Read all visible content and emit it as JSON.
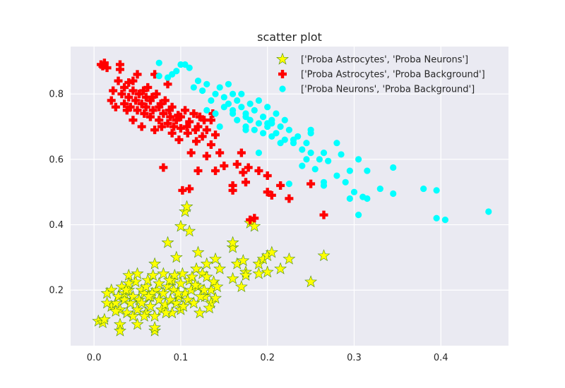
{
  "chart_data": {
    "type": "scatter",
    "title": "scatter plot",
    "xlabel": "",
    "ylabel": "",
    "xlim": [
      -0.027,
      0.478
    ],
    "ylim": [
      0.03,
      0.945
    ],
    "xticks": [
      0.0,
      0.1,
      0.2,
      0.3,
      0.4
    ],
    "xtick_labels": [
      "0.0",
      "0.1",
      "0.2",
      "0.3",
      "0.4"
    ],
    "yticks": [
      0.2,
      0.4,
      0.6,
      0.8
    ],
    "ytick_labels": [
      "0.2",
      "0.4",
      "0.6",
      "0.8"
    ],
    "grid": true,
    "legend_position": "top-right",
    "series": [
      {
        "name": "['Proba Astrocytes', 'Proba Neurons']",
        "marker": "star",
        "color": "#ffff00",
        "edge_color": "#4a8c1a",
        "points": [
          [
            0.005,
            0.105
          ],
          [
            0.01,
            0.1
          ],
          [
            0.012,
            0.11
          ],
          [
            0.02,
            0.15
          ],
          [
            0.02,
            0.2
          ],
          [
            0.025,
            0.16
          ],
          [
            0.028,
            0.18
          ],
          [
            0.03,
            0.095
          ],
          [
            0.03,
            0.075
          ],
          [
            0.03,
            0.14
          ],
          [
            0.032,
            0.21
          ],
          [
            0.035,
            0.17
          ],
          [
            0.035,
            0.19
          ],
          [
            0.038,
            0.13
          ],
          [
            0.04,
            0.2
          ],
          [
            0.04,
            0.245
          ],
          [
            0.042,
            0.16
          ],
          [
            0.045,
            0.18
          ],
          [
            0.045,
            0.12
          ],
          [
            0.048,
            0.225
          ],
          [
            0.05,
            0.095
          ],
          [
            0.05,
            0.14
          ],
          [
            0.05,
            0.25
          ],
          [
            0.052,
            0.17
          ],
          [
            0.055,
            0.2
          ],
          [
            0.055,
            0.16
          ],
          [
            0.058,
            0.19
          ],
          [
            0.06,
            0.13
          ],
          [
            0.06,
            0.21
          ],
          [
            0.062,
            0.23
          ],
          [
            0.065,
            0.18
          ],
          [
            0.065,
            0.15
          ],
          [
            0.068,
            0.245
          ],
          [
            0.07,
            0.075
          ],
          [
            0.07,
            0.085
          ],
          [
            0.07,
            0.28
          ],
          [
            0.07,
            0.12
          ],
          [
            0.072,
            0.2
          ],
          [
            0.075,
            0.17
          ],
          [
            0.075,
            0.22
          ],
          [
            0.078,
            0.14
          ],
          [
            0.08,
            0.19
          ],
          [
            0.08,
            0.25
          ],
          [
            0.082,
            0.155
          ],
          [
            0.085,
            0.21
          ],
          [
            0.085,
            0.345
          ],
          [
            0.088,
            0.17
          ],
          [
            0.09,
            0.23
          ],
          [
            0.09,
            0.13
          ],
          [
            0.092,
            0.2
          ],
          [
            0.095,
            0.16
          ],
          [
            0.095,
            0.3
          ],
          [
            0.098,
            0.18
          ],
          [
            0.1,
            0.22
          ],
          [
            0.1,
            0.14
          ],
          [
            0.1,
            0.395
          ],
          [
            0.102,
            0.25
          ],
          [
            0.105,
            0.19
          ],
          [
            0.105,
            0.44
          ],
          [
            0.107,
            0.455
          ],
          [
            0.108,
            0.17
          ],
          [
            0.11,
            0.38
          ],
          [
            0.11,
            0.23
          ],
          [
            0.112,
            0.2
          ],
          [
            0.115,
            0.16
          ],
          [
            0.118,
            0.265
          ],
          [
            0.12,
            0.21
          ],
          [
            0.12,
            0.315
          ],
          [
            0.122,
            0.13
          ],
          [
            0.125,
            0.25
          ],
          [
            0.128,
            0.18
          ],
          [
            0.13,
            0.24
          ],
          [
            0.13,
            0.28
          ],
          [
            0.135,
            0.2
          ],
          [
            0.135,
            0.16
          ],
          [
            0.138,
            0.225
          ],
          [
            0.14,
            0.175
          ],
          [
            0.14,
            0.295
          ],
          [
            0.145,
            0.265
          ],
          [
            0.16,
            0.33
          ],
          [
            0.16,
            0.345
          ],
          [
            0.16,
            0.235
          ],
          [
            0.165,
            0.28
          ],
          [
            0.17,
            0.21
          ],
          [
            0.172,
            0.29
          ],
          [
            0.175,
            0.255
          ],
          [
            0.175,
            0.245
          ],
          [
            0.18,
            0.405
          ],
          [
            0.185,
            0.395
          ],
          [
            0.19,
            0.25
          ],
          [
            0.19,
            0.28
          ],
          [
            0.195,
            0.295
          ],
          [
            0.2,
            0.255
          ],
          [
            0.2,
            0.305
          ],
          [
            0.205,
            0.315
          ],
          [
            0.215,
            0.265
          ],
          [
            0.225,
            0.295
          ],
          [
            0.25,
            0.225
          ],
          [
            0.265,
            0.305
          ],
          [
            0.015,
            0.19
          ],
          [
            0.025,
            0.135
          ],
          [
            0.04,
            0.22
          ],
          [
            0.058,
            0.12
          ],
          [
            0.067,
            0.19
          ],
          [
            0.083,
            0.13
          ],
          [
            0.093,
            0.245
          ],
          [
            0.103,
            0.15
          ],
          [
            0.113,
            0.24
          ],
          [
            0.123,
            0.18
          ],
          [
            0.133,
            0.145
          ],
          [
            0.015,
            0.16
          ],
          [
            0.037,
            0.2
          ],
          [
            0.063,
            0.18
          ],
          [
            0.087,
            0.23
          ],
          [
            0.097,
            0.19
          ],
          [
            0.117,
            0.215
          ],
          [
            0.127,
            0.2
          ],
          [
            0.142,
            0.21
          ]
        ]
      },
      {
        "name": "['Proba Astrocytes', 'Proba Background']",
        "marker": "plus",
        "color": "#ff0000",
        "points": [
          [
            0.008,
            0.89
          ],
          [
            0.01,
            0.885
          ],
          [
            0.012,
            0.895
          ],
          [
            0.02,
            0.78
          ],
          [
            0.022,
            0.81
          ],
          [
            0.025,
            0.76
          ],
          [
            0.028,
            0.84
          ],
          [
            0.03,
            0.89
          ],
          [
            0.03,
            0.875
          ],
          [
            0.032,
            0.8
          ],
          [
            0.035,
            0.77
          ],
          [
            0.035,
            0.82
          ],
          [
            0.038,
            0.75
          ],
          [
            0.04,
            0.79
          ],
          [
            0.04,
            0.835
          ],
          [
            0.042,
            0.76
          ],
          [
            0.045,
            0.72
          ],
          [
            0.045,
            0.81
          ],
          [
            0.048,
            0.78
          ],
          [
            0.05,
            0.86
          ],
          [
            0.05,
            0.75
          ],
          [
            0.052,
            0.8
          ],
          [
            0.055,
            0.77
          ],
          [
            0.055,
            0.7
          ],
          [
            0.058,
            0.74
          ],
          [
            0.06,
            0.79
          ],
          [
            0.06,
            0.76
          ],
          [
            0.062,
            0.82
          ],
          [
            0.065,
            0.73
          ],
          [
            0.065,
            0.78
          ],
          [
            0.068,
            0.75
          ],
          [
            0.07,
            0.69
          ],
          [
            0.07,
            0.86
          ],
          [
            0.072,
            0.8
          ],
          [
            0.075,
            0.72
          ],
          [
            0.075,
            0.76
          ],
          [
            0.078,
            0.7
          ],
          [
            0.08,
            0.74
          ],
          [
            0.08,
            0.575
          ],
          [
            0.082,
            0.78
          ],
          [
            0.085,
            0.71
          ],
          [
            0.085,
            0.83
          ],
          [
            0.088,
            0.73
          ],
          [
            0.09,
            0.68
          ],
          [
            0.09,
            0.76
          ],
          [
            0.092,
            0.7
          ],
          [
            0.095,
            0.72
          ],
          [
            0.098,
            0.66
          ],
          [
            0.1,
            0.73
          ],
          [
            0.1,
            0.695
          ],
          [
            0.102,
            0.505
          ],
          [
            0.105,
            0.75
          ],
          [
            0.108,
            0.68
          ],
          [
            0.11,
            0.51
          ],
          [
            0.11,
            0.715
          ],
          [
            0.112,
            0.62
          ],
          [
            0.115,
            0.74
          ],
          [
            0.118,
            0.655
          ],
          [
            0.12,
            0.7
          ],
          [
            0.12,
            0.565
          ],
          [
            0.122,
            0.73
          ],
          [
            0.125,
            0.67
          ],
          [
            0.13,
            0.69
          ],
          [
            0.13,
            0.61
          ],
          [
            0.135,
            0.72
          ],
          [
            0.135,
            0.645
          ],
          [
            0.14,
            0.565
          ],
          [
            0.14,
            0.675
          ],
          [
            0.145,
            0.62
          ],
          [
            0.15,
            0.58
          ],
          [
            0.16,
            0.505
          ],
          [
            0.16,
            0.52
          ],
          [
            0.165,
            0.585
          ],
          [
            0.17,
            0.62
          ],
          [
            0.172,
            0.56
          ],
          [
            0.175,
            0.53
          ],
          [
            0.178,
            0.575
          ],
          [
            0.18,
            0.415
          ],
          [
            0.185,
            0.42
          ],
          [
            0.19,
            0.565
          ],
          [
            0.2,
            0.55
          ],
          [
            0.2,
            0.5
          ],
          [
            0.205,
            0.49
          ],
          [
            0.215,
            0.52
          ],
          [
            0.225,
            0.48
          ],
          [
            0.25,
            0.525
          ],
          [
            0.265,
            0.43
          ],
          [
            0.015,
            0.88
          ],
          [
            0.045,
            0.84
          ],
          [
            0.067,
            0.79
          ],
          [
            0.087,
            0.75
          ],
          [
            0.107,
            0.7
          ],
          [
            0.057,
            0.81
          ],
          [
            0.077,
            0.77
          ],
          [
            0.097,
            0.735
          ],
          [
            0.117,
            0.69
          ],
          [
            0.127,
            0.72
          ],
          [
            0.137,
            0.74
          ]
        ]
      },
      {
        "name": "['Proba Neurons', 'Proba Background']",
        "marker": "circle",
        "color": "#00ffff",
        "points": [
          [
            0.075,
            0.895
          ],
          [
            0.075,
            0.855
          ],
          [
            0.085,
            0.85
          ],
          [
            0.09,
            0.86
          ],
          [
            0.095,
            0.87
          ],
          [
            0.1,
            0.89
          ],
          [
            0.105,
            0.89
          ],
          [
            0.11,
            0.88
          ],
          [
            0.115,
            0.82
          ],
          [
            0.12,
            0.84
          ],
          [
            0.125,
            0.81
          ],
          [
            0.13,
            0.83
          ],
          [
            0.13,
            0.75
          ],
          [
            0.135,
            0.78
          ],
          [
            0.14,
            0.8
          ],
          [
            0.14,
            0.74
          ],
          [
            0.145,
            0.82
          ],
          [
            0.15,
            0.79
          ],
          [
            0.15,
            0.76
          ],
          [
            0.155,
            0.83
          ],
          [
            0.155,
            0.77
          ],
          [
            0.16,
            0.8
          ],
          [
            0.16,
            0.75
          ],
          [
            0.165,
            0.78
          ],
          [
            0.165,
            0.72
          ],
          [
            0.17,
            0.76
          ],
          [
            0.17,
            0.8
          ],
          [
            0.175,
            0.74
          ],
          [
            0.175,
            0.69
          ],
          [
            0.18,
            0.77
          ],
          [
            0.18,
            0.72
          ],
          [
            0.185,
            0.75
          ],
          [
            0.19,
            0.71
          ],
          [
            0.19,
            0.78
          ],
          [
            0.195,
            0.73
          ],
          [
            0.2,
            0.7
          ],
          [
            0.2,
            0.76
          ],
          [
            0.205,
            0.72
          ],
          [
            0.21,
            0.68
          ],
          [
            0.21,
            0.74
          ],
          [
            0.215,
            0.7
          ],
          [
            0.22,
            0.66
          ],
          [
            0.22,
            0.72
          ],
          [
            0.225,
            0.69
          ],
          [
            0.23,
            0.65
          ],
          [
            0.235,
            0.67
          ],
          [
            0.24,
            0.63
          ],
          [
            0.245,
            0.65
          ],
          [
            0.25,
            0.62
          ],
          [
            0.25,
            0.68
          ],
          [
            0.255,
            0.57
          ],
          [
            0.26,
            0.6
          ],
          [
            0.265,
            0.53
          ],
          [
            0.265,
            0.62
          ],
          [
            0.27,
            0.595
          ],
          [
            0.28,
            0.55
          ],
          [
            0.28,
            0.65
          ],
          [
            0.285,
            0.615
          ],
          [
            0.29,
            0.53
          ],
          [
            0.295,
            0.565
          ],
          [
            0.295,
            0.48
          ],
          [
            0.3,
            0.5
          ],
          [
            0.305,
            0.43
          ],
          [
            0.305,
            0.6
          ],
          [
            0.31,
            0.485
          ],
          [
            0.315,
            0.48
          ],
          [
            0.315,
            0.565
          ],
          [
            0.33,
            0.51
          ],
          [
            0.345,
            0.575
          ],
          [
            0.345,
            0.495
          ],
          [
            0.38,
            0.51
          ],
          [
            0.395,
            0.42
          ],
          [
            0.395,
            0.505
          ],
          [
            0.405,
            0.415
          ],
          [
            0.455,
            0.44
          ],
          [
            0.24,
            0.58
          ],
          [
            0.265,
            0.52
          ],
          [
            0.225,
            0.525
          ],
          [
            0.185,
            0.69
          ],
          [
            0.195,
            0.68
          ],
          [
            0.205,
            0.67
          ],
          [
            0.215,
            0.65
          ],
          [
            0.2,
            0.71
          ],
          [
            0.175,
            0.73
          ],
          [
            0.16,
            0.74
          ],
          [
            0.145,
            0.7
          ],
          [
            0.19,
            0.62
          ],
          [
            0.175,
            0.7
          ],
          [
            0.205,
            0.71
          ],
          [
            0.25,
            0.69
          ],
          [
            0.23,
            0.66
          ],
          [
            0.245,
            0.6
          ]
        ]
      }
    ]
  }
}
